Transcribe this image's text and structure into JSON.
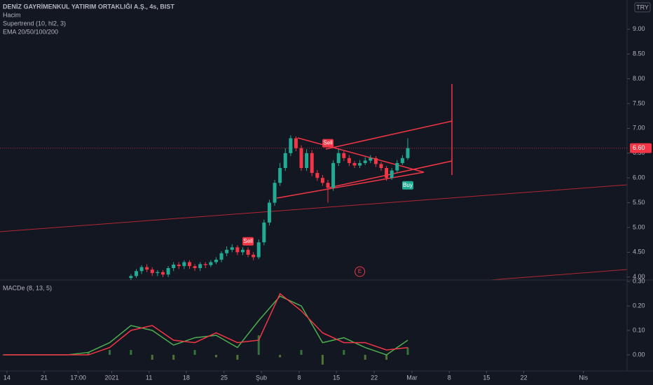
{
  "chart_data": [
    {
      "type": "candlestick",
      "title": "DENİZ GAYRİMENKUL YATIRIM ORTAKLIĞI A.Ş., 4s, BIST",
      "indicators": [
        "Hacim",
        "Supertrend (10, hl2, 3)",
        "EMA 20/50/100/200"
      ],
      "currency": "TRY",
      "x": [
        0,
        1,
        2,
        3,
        4,
        5,
        6,
        7,
        8,
        9,
        10,
        11,
        12,
        13,
        14,
        15,
        16,
        17,
        18,
        19,
        20,
        21,
        22,
        23,
        24,
        25,
        26,
        27,
        28,
        29,
        30,
        31,
        32,
        33,
        34,
        35,
        36,
        37,
        38,
        39,
        40,
        41,
        42,
        43,
        44,
        45,
        46,
        47,
        48,
        49,
        50,
        51,
        52
      ],
      "open": [
        3.98,
        4.02,
        4.12,
        4.2,
        4.15,
        4.08,
        4.1,
        4.05,
        4.18,
        4.25,
        4.22,
        4.3,
        4.22,
        4.18,
        4.26,
        4.24,
        4.3,
        4.35,
        4.48,
        4.55,
        4.6,
        4.5,
        4.55,
        4.45,
        4.4,
        4.7,
        5.1,
        5.5,
        5.9,
        6.2,
        6.5,
        6.8,
        6.6,
        6.2,
        6.5,
        6.1,
        6.0,
        5.9,
        5.8,
        6.3,
        6.5,
        6.4,
        6.3,
        6.25,
        6.3,
        6.35,
        6.4,
        6.28,
        6.2,
        6.0,
        6.15,
        6.3,
        6.4
      ],
      "high": [
        4.06,
        4.16,
        4.24,
        4.26,
        4.2,
        4.14,
        4.14,
        4.22,
        4.3,
        4.3,
        4.34,
        4.34,
        4.26,
        4.3,
        4.3,
        4.34,
        4.4,
        4.52,
        4.62,
        4.66,
        4.64,
        4.6,
        4.6,
        4.5,
        4.76,
        5.16,
        5.56,
        5.96,
        6.3,
        6.6,
        6.86,
        6.84,
        6.66,
        6.58,
        6.56,
        6.16,
        6.06,
        5.96,
        6.36,
        6.58,
        6.54,
        6.46,
        6.34,
        6.36,
        6.42,
        6.46,
        6.44,
        6.32,
        6.24,
        6.2,
        6.36,
        6.46,
        6.8
      ],
      "low": [
        3.94,
        3.98,
        4.06,
        4.1,
        4.02,
        4.02,
        4.0,
        4.0,
        4.12,
        4.16,
        4.16,
        4.16,
        4.12,
        4.12,
        4.18,
        4.2,
        4.26,
        4.3,
        4.42,
        4.5,
        4.44,
        4.44,
        4.4,
        4.34,
        4.36,
        4.64,
        5.04,
        5.44,
        5.84,
        6.14,
        6.44,
        6.54,
        6.14,
        6.14,
        6.04,
        5.94,
        5.84,
        5.5,
        5.74,
        6.24,
        6.34,
        6.24,
        6.2,
        6.2,
        6.26,
        6.3,
        6.22,
        6.14,
        5.94,
        5.96,
        6.1,
        6.26,
        6.36
      ],
      "close": [
        4.02,
        4.12,
        4.2,
        4.15,
        4.08,
        4.1,
        4.05,
        4.18,
        4.25,
        4.22,
        4.3,
        4.22,
        4.18,
        4.26,
        4.24,
        4.3,
        4.35,
        4.48,
        4.55,
        4.6,
        4.5,
        4.55,
        4.45,
        4.4,
        4.7,
        5.1,
        5.5,
        5.9,
        6.2,
        6.5,
        6.8,
        6.6,
        6.2,
        6.5,
        6.1,
        6.0,
        5.9,
        5.8,
        6.3,
        6.5,
        6.4,
        6.3,
        6.25,
        6.3,
        6.35,
        6.4,
        6.28,
        6.2,
        6.0,
        6.15,
        6.3,
        6.4,
        6.6
      ],
      "up_color": "#22ab94",
      "down_color": "#f23645",
      "xlim": [
        -24.6,
        93.2
      ],
      "ylim": [
        3.94,
        9.59
      ],
      "yticks": [
        {
          "value": 4,
          "label": "4.00"
        },
        {
          "value": 4.5,
          "label": "4.50"
        },
        {
          "value": 5,
          "label": "5.00"
        },
        {
          "value": 5.5,
          "label": "5.50"
        },
        {
          "value": 6,
          "label": "6.00"
        },
        {
          "value": 6.5,
          "label": "6.50"
        },
        {
          "value": 7,
          "label": "7.00"
        },
        {
          "value": 7.5,
          "label": "7.50"
        },
        {
          "value": 8,
          "label": "8.00"
        },
        {
          "value": 8.5,
          "label": "8.50"
        },
        {
          "value": 9,
          "label": "9.00"
        }
      ],
      "last_price": {
        "value": 6.6,
        "label": "6.60"
      },
      "signals": [
        {
          "label": "Sell",
          "x": 22,
          "price": 4.72
        },
        {
          "label": "Sell",
          "x": 37,
          "price": 6.7
        },
        {
          "label": "Buy",
          "x": 52,
          "price": 5.85
        }
      ],
      "events": [
        {
          "label": "E",
          "x": 43
        }
      ]
    },
    {
      "type": "macd",
      "title": "MACDe (8, 13, 5)",
      "x": [
        -24,
        -20,
        -16,
        -12,
        -8,
        -4,
        0,
        4,
        8,
        12,
        16,
        20,
        24,
        28,
        32,
        36,
        40,
        44,
        48,
        52
      ],
      "series": [
        {
          "color": "#4caf50",
          "values": [
            0,
            0,
            0,
            0,
            0.01,
            0.05,
            0.12,
            0.1,
            0.04,
            0.07,
            0.08,
            0.03,
            0.14,
            0.24,
            0.2,
            0.05,
            0.07,
            0.03,
            0,
            0.06
          ]
        },
        {
          "color": "#f23645",
          "values": [
            0,
            0,
            0,
            0,
            0,
            0.03,
            0.1,
            0.12,
            0.06,
            0.05,
            0.09,
            0.05,
            0.06,
            0.25,
            0.18,
            0.09,
            0.05,
            0.05,
            0.02,
            0.03
          ]
        }
      ],
      "histogram": [
        0,
        0,
        0,
        0,
        0.01,
        0.02,
        0.02,
        -0.02,
        -0.02,
        0.02,
        -0.01,
        -0.02,
        0.08,
        -0.01,
        0.02,
        -0.04,
        0.02,
        -0.02,
        -0.02,
        0.03
      ],
      "xlim": [
        -24.6,
        93.2
      ],
      "ylim": [
        -0.066,
        0.306
      ],
      "yticks": [
        {
          "value": 0,
          "label": "0.00"
        },
        {
          "value": 0.1,
          "label": "0.10"
        },
        {
          "value": 0.2,
          "label": "0.20"
        },
        {
          "value": 0.3,
          "label": "0.30"
        }
      ],
      "xticks": [
        {
          "value": -23.3,
          "label": "14"
        },
        {
          "value": -16.3,
          "label": "21"
        },
        {
          "value": -9.9,
          "label": "17:00"
        },
        {
          "value": -3.6,
          "label": "2021"
        },
        {
          "value": 3.4,
          "label": "11"
        },
        {
          "value": 10.4,
          "label": "18"
        },
        {
          "value": 17.5,
          "label": "25"
        },
        {
          "value": 24.5,
          "label": "Şub"
        },
        {
          "value": 31.6,
          "label": "8"
        },
        {
          "value": 38.6,
          "label": "15"
        },
        {
          "value": 45.7,
          "label": "22"
        },
        {
          "value": 52.8,
          "label": "Mar"
        },
        {
          "value": 59.8,
          "label": "8"
        },
        {
          "value": 66.8,
          "label": "15"
        },
        {
          "value": 73.8,
          "label": "22"
        },
        {
          "value": 85.0,
          "label": "Nis"
        }
      ]
    }
  ]
}
